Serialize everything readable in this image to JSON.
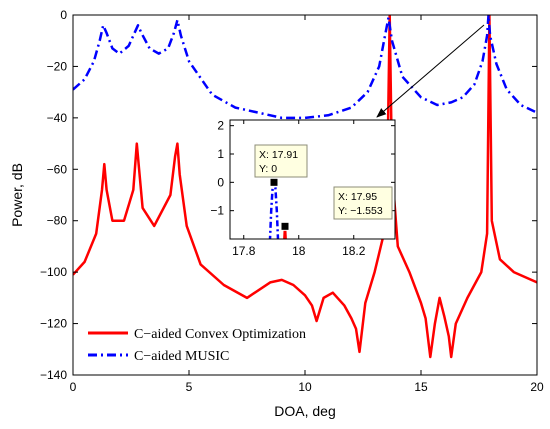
{
  "chart_data": {
    "type": "line",
    "xlabel": "DOA, deg",
    "ylabel": "Power, dB",
    "xlim": [
      0,
      20
    ],
    "ylim": [
      -140,
      0
    ],
    "xticks": [
      0,
      5,
      10,
      15,
      20
    ],
    "yticks": [
      0,
      -20,
      -40,
      -60,
      -80,
      -100,
      -120,
      -140
    ],
    "grid": false,
    "legend_position": "bottom-left",
    "series": [
      {
        "name": "C−aided Convex Optimization",
        "color": "#ff0000",
        "style": "solid",
        "x": [
          0,
          0.5,
          1.0,
          1.25,
          1.35,
          1.45,
          1.7,
          2.2,
          2.6,
          2.75,
          2.85,
          3.0,
          3.5,
          4.2,
          4.4,
          4.5,
          4.6,
          4.9,
          5.5,
          6.5,
          7.5,
          8.5,
          9.0,
          9.5,
          10.0,
          10.3,
          10.5,
          10.8,
          11.2,
          11.7,
          12.0,
          12.2,
          12.35,
          12.6,
          13.0,
          13.4,
          13.55,
          13.65,
          13.75,
          14.0,
          14.5,
          15.0,
          15.2,
          15.4,
          15.6,
          15.8,
          16.0,
          16.2,
          16.3,
          16.5,
          17.0,
          17.6,
          17.85,
          17.95,
          18.05,
          18.4,
          19.0,
          20.0
        ],
        "y": [
          -101,
          -96,
          -85,
          -68,
          -58,
          -68,
          -80,
          -80,
          -68,
          -50,
          -60,
          -75,
          -82,
          -70,
          -55,
          -50,
          -62,
          -82,
          -97,
          -105,
          -110,
          -104,
          -103,
          -105,
          -109,
          -113,
          -119,
          -110,
          -108,
          -113,
          -118,
          -122,
          -131,
          -112,
          -100,
          -85,
          -60,
          0,
          -60,
          -90,
          -100,
          -112,
          -118,
          -133,
          -120,
          -110,
          -117,
          -125,
          -133,
          -120,
          -110,
          -100,
          -85,
          0,
          -80,
          -95,
          -100,
          -104
        ]
      },
      {
        "name": "C−aided MUSIC",
        "color": "#0000ff",
        "style": "dashdot",
        "x": [
          0,
          0.5,
          0.9,
          1.15,
          1.3,
          1.45,
          1.7,
          2.0,
          2.4,
          2.65,
          2.8,
          2.95,
          3.3,
          3.7,
          4.1,
          4.35,
          4.5,
          4.65,
          5.0,
          6.0,
          7.0,
          8.0,
          9.0,
          10.0,
          11.0,
          12.0,
          12.7,
          13.2,
          13.45,
          13.6,
          13.75,
          14.2,
          15.0,
          15.7,
          16.3,
          16.8,
          17.3,
          17.65,
          17.85,
          17.91,
          17.98,
          18.25,
          18.7,
          19.3,
          20.0
        ],
        "y": [
          -29,
          -25,
          -18,
          -10,
          -4,
          -7,
          -13,
          -15,
          -12,
          -7,
          -4,
          -7,
          -13,
          -15,
          -13,
          -7,
          -2,
          -8,
          -18,
          -31,
          -36,
          -38,
          -40,
          -40,
          -39,
          -36,
          -30,
          -20,
          -8,
          -1,
          -10,
          -24,
          -32,
          -35,
          -34,
          -32,
          -27,
          -18,
          -8,
          0,
          -8,
          -19,
          -29,
          -35,
          -38
        ]
      }
    ],
    "inset": {
      "xlim": [
        17.75,
        18.35
      ],
      "ylim": [
        -2,
        2.2
      ],
      "xticks": [
        17.8,
        18,
        18.2
      ],
      "xtick_labels": [
        "17.8",
        "18",
        "18.2"
      ],
      "yticks": [
        2,
        1,
        0,
        -1
      ],
      "ytick_labels": [
        "2",
        "1",
        "0",
        "−1"
      ],
      "series": [
        {
          "name": "C−aided MUSIC",
          "color": "#0000ff",
          "style": "dashdot",
          "x": [
            17.895,
            17.9,
            17.905,
            17.91,
            17.915,
            17.92,
            17.925
          ],
          "y": [
            -2.1,
            -1.0,
            -0.2,
            0,
            -0.2,
            -1.0,
            -2.1
          ]
        },
        {
          "name": "C−aided Convex Optimization",
          "color": "#ff0000",
          "style": "solid",
          "x": [
            17.947,
            17.95,
            17.953
          ],
          "y": [
            -2.1,
            -1.553,
            -2.1
          ]
        }
      ],
      "datatips": [
        {
          "x_text": "X: 17.91",
          "y_text": "Y: 0",
          "px": 17.91,
          "py": 0
        },
        {
          "x_text": "X: 17.95",
          "y_text": "Y: −1.553",
          "px": 17.95,
          "py": -1.553
        }
      ]
    }
  }
}
